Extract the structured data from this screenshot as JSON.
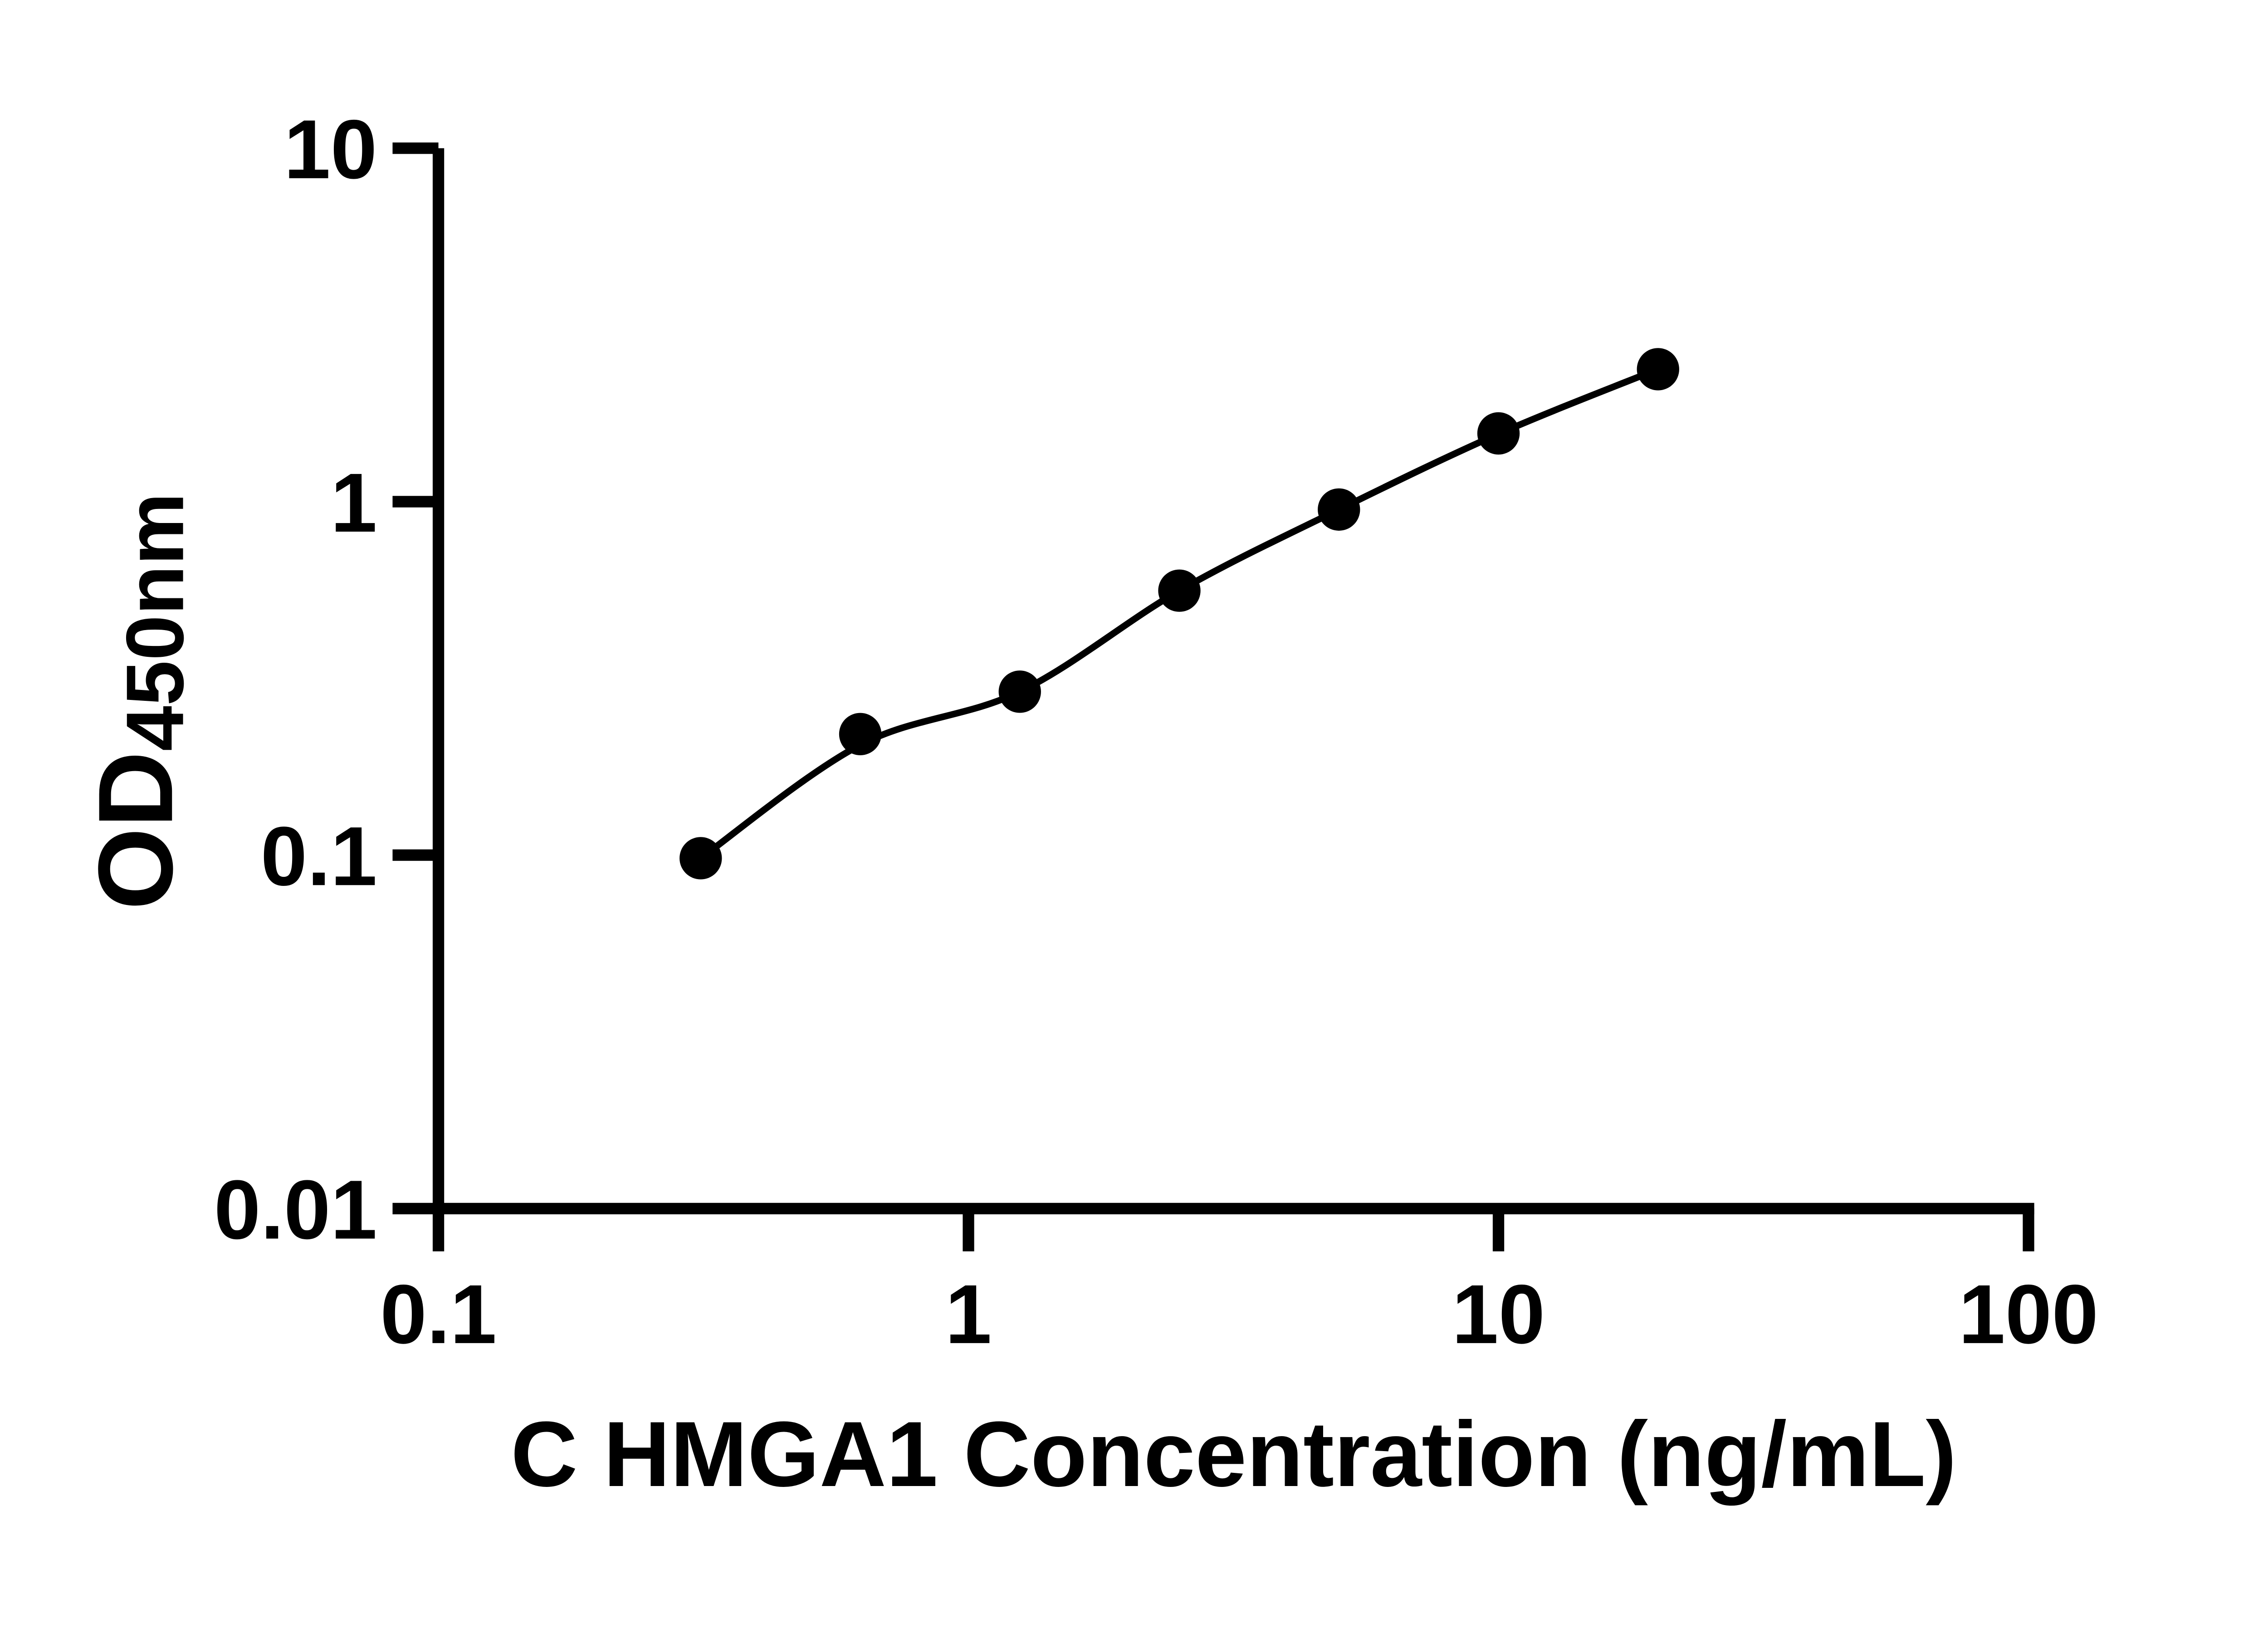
{
  "chart_data": {
    "type": "scatter",
    "subtype": "standard-curve-with-fit",
    "title": "",
    "xlabel": "C HMGA1 Concentration (ng/mL)",
    "ylabel_main": "OD",
    "ylabel_sub": "450nm",
    "x_scale": "log10",
    "y_scale": "log10",
    "xlim": [
      0.1,
      100
    ],
    "ylim": [
      0.01,
      10
    ],
    "grid": false,
    "legend": "none",
    "x_ticks": [
      {
        "value": 0.1,
        "label": "0.1"
      },
      {
        "value": 1,
        "label": "1"
      },
      {
        "value": 10,
        "label": "10"
      },
      {
        "value": 100,
        "label": "100"
      }
    ],
    "y_ticks": [
      {
        "value": 10,
        "label": "10"
      },
      {
        "value": 1,
        "label": "1"
      },
      {
        "value": 0.1,
        "label": "0.1"
      },
      {
        "value": 0.01,
        "label": "0.01"
      }
    ],
    "points": [
      {
        "x": 0.3125,
        "y": 0.098
      },
      {
        "x": 0.625,
        "y": 0.22
      },
      {
        "x": 1.25,
        "y": 0.29
      },
      {
        "x": 2.5,
        "y": 0.56
      },
      {
        "x": 5,
        "y": 0.95
      },
      {
        "x": 10,
        "y": 1.56
      },
      {
        "x": 20,
        "y": 2.37
      }
    ],
    "fit_curve": [
      {
        "x": 0.3125,
        "y": 0.098
      },
      {
        "x": 0.625,
        "y": 0.205
      },
      {
        "x": 1.25,
        "y": 0.29
      },
      {
        "x": 2.5,
        "y": 0.56
      },
      {
        "x": 5,
        "y": 0.95
      },
      {
        "x": 10,
        "y": 1.555
      },
      {
        "x": 20,
        "y": 2.37
      }
    ],
    "colors": {
      "foreground": "#000000",
      "background": "#ffffff"
    }
  }
}
